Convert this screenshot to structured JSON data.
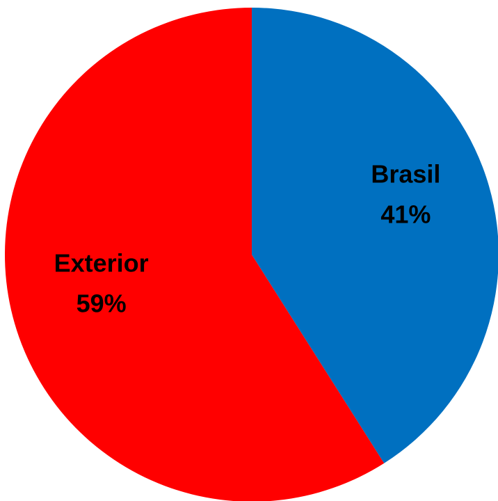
{
  "chart_data": {
    "type": "pie",
    "title": "",
    "start_angle_deg": 0,
    "direction": "clockwise",
    "legend": "none",
    "slices": [
      {
        "label": "Brasil",
        "value": 41,
        "value_label": "41%",
        "color": "#0070C0"
      },
      {
        "label": "Exterior",
        "value": 59,
        "value_label": "59%",
        "color": "#FF0000"
      }
    ]
  }
}
